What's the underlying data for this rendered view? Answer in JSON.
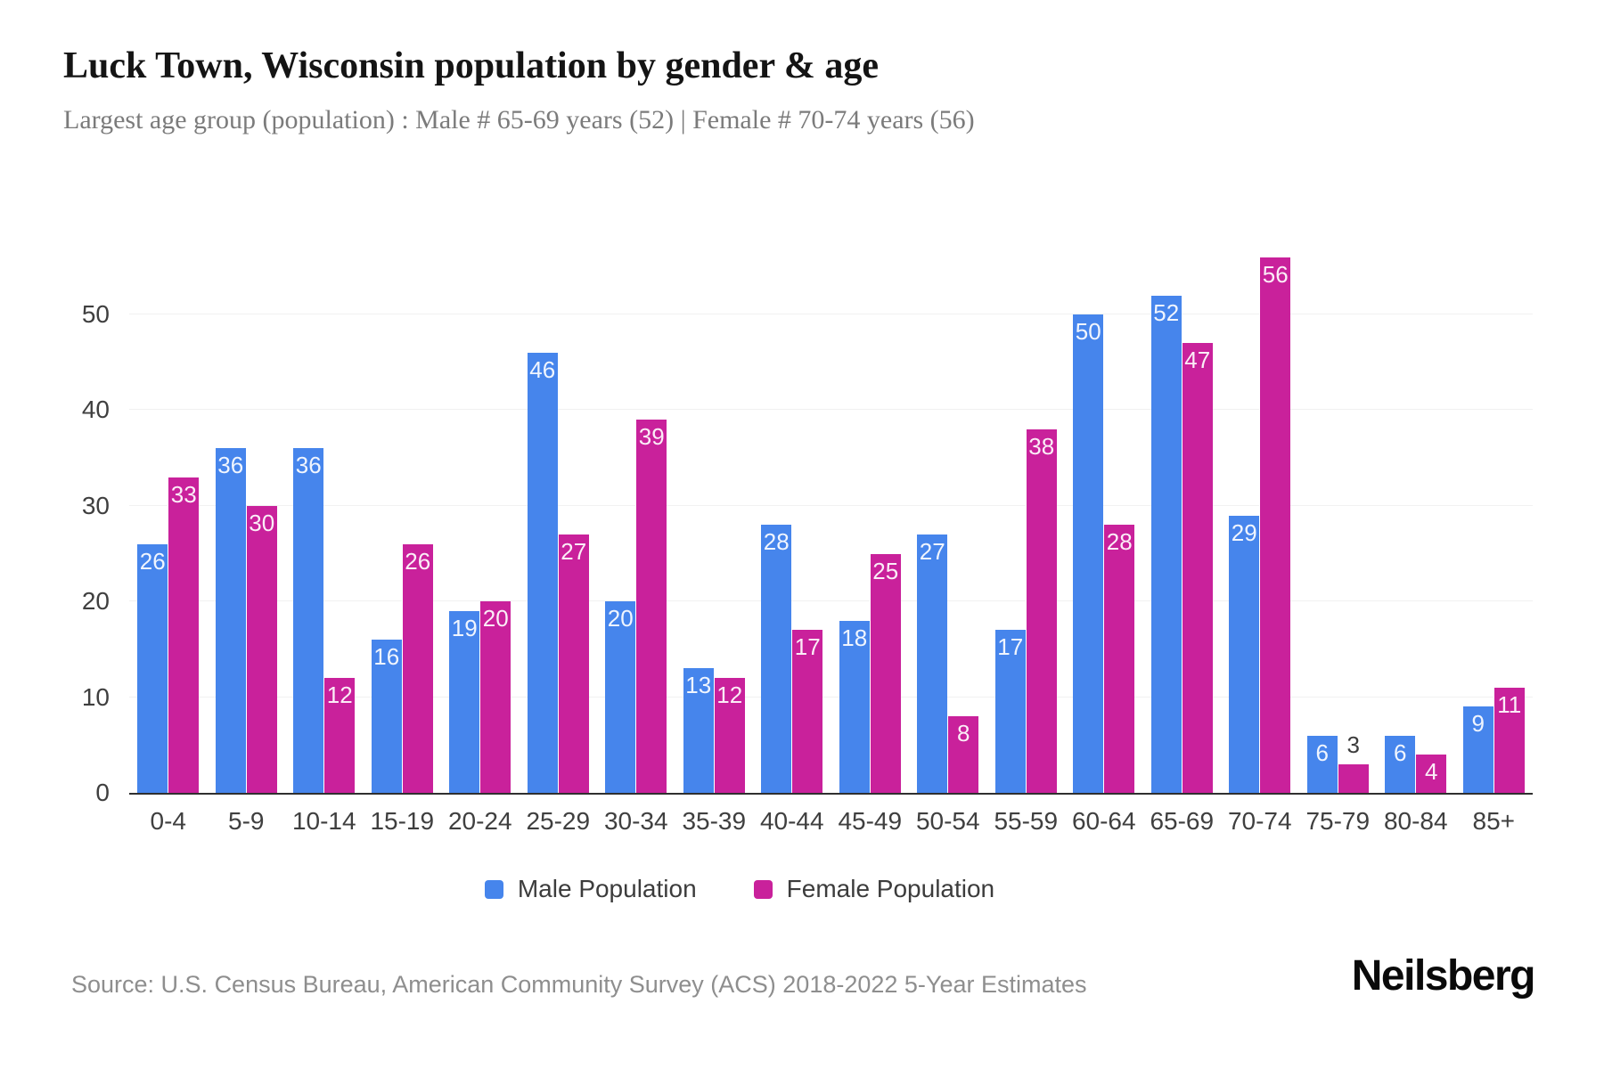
{
  "header": {
    "title": "Luck Town, Wisconsin population by gender & age",
    "subtitle": "Largest age group (population) : Male # 65-69 years (52) | Female # 70-74 years (56)"
  },
  "footer": {
    "source": "Source: U.S. Census Bureau, American Community Survey (ACS) 2018-2022 5-Year Estimates",
    "brand": "Neilsberg"
  },
  "colors": {
    "male": "#4685EC",
    "female": "#C9219B",
    "grid": "#f1f1f1",
    "axis_line": "#2f2f2f",
    "tick_label": "#3f3f3f",
    "value_label_inside": "#ffffff",
    "value_label_outside": "#3c3c3c"
  },
  "chart_data": {
    "type": "bar",
    "categories": [
      "0-4",
      "5-9",
      "10-14",
      "15-19",
      "20-24",
      "25-29",
      "30-34",
      "35-39",
      "40-44",
      "45-49",
      "50-54",
      "55-59",
      "60-64",
      "65-69",
      "70-74",
      "75-79",
      "80-84",
      "85+"
    ],
    "series": [
      {
        "name": "Male Population",
        "color": "#4685EC",
        "values": [
          26,
          36,
          36,
          16,
          19,
          46,
          20,
          13,
          28,
          18,
          27,
          17,
          50,
          52,
          29,
          6,
          6,
          9
        ]
      },
      {
        "name": "Female Population",
        "color": "#C9219B",
        "values": [
          33,
          30,
          12,
          26,
          20,
          27,
          39,
          12,
          17,
          25,
          8,
          38,
          28,
          47,
          56,
          3,
          4,
          11
        ]
      }
    ],
    "title": "Luck Town, Wisconsin population by gender & age",
    "xlabel": "",
    "ylabel": "",
    "yticks": [
      0,
      10,
      20,
      30,
      40,
      50
    ],
    "ylim": [
      0,
      59.6
    ],
    "grid": "horizontal",
    "legend_position": "bottom",
    "bar_value_labels": true
  }
}
